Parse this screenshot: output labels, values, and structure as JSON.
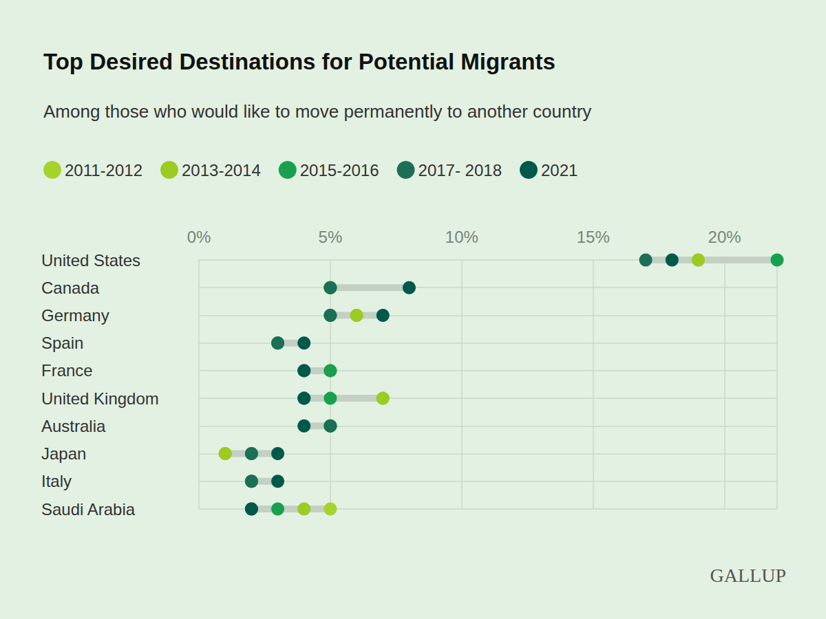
{
  "chart_data": {
    "type": "scatter",
    "orientation": "horizontal",
    "title": "Top Desired Destinations for Potential Migrants",
    "subtitle": "Among those who would like to move permanently to another country",
    "source": "GALLUP",
    "categories": [
      "United States",
      "Canada",
      "Germany",
      "Spain",
      "France",
      "United Kingdom",
      "Australia",
      "Japan",
      "Italy",
      "Saudi Arabia"
    ],
    "series": [
      {
        "name": "2011-2012",
        "color": "#a6d32b",
        "values": [
          19,
          5,
          6,
          3,
          5,
          7,
          5,
          1,
          2,
          5
        ]
      },
      {
        "name": "2013-2014",
        "color": "#9ccb22",
        "values": [
          19,
          5,
          6,
          3,
          5,
          7,
          5,
          1,
          2,
          4
        ]
      },
      {
        "name": "2015-2016",
        "color": "#17a14f",
        "values": [
          22,
          5,
          5,
          3,
          5,
          5,
          5,
          2,
          2,
          3
        ]
      },
      {
        "name": "2017- 2018",
        "color": "#1b6f57",
        "values": [
          17,
          5,
          5,
          3,
          4,
          4,
          5,
          2,
          2,
          2
        ]
      },
      {
        "name": "2021",
        "color": "#00594b",
        "values": [
          18,
          8,
          7,
          4,
          4,
          4,
          4,
          3,
          3,
          2
        ]
      }
    ],
    "xlim": [
      0,
      22
    ],
    "xticks": [
      {
        "value": 0,
        "label": "0%"
      },
      {
        "value": 5,
        "label": "5%"
      },
      {
        "value": 10,
        "label": "10%"
      },
      {
        "value": 15,
        "label": "15%"
      },
      {
        "value": 20,
        "label": "20%"
      }
    ],
    "grid": true,
    "legend": "top",
    "marker": "circle"
  }
}
